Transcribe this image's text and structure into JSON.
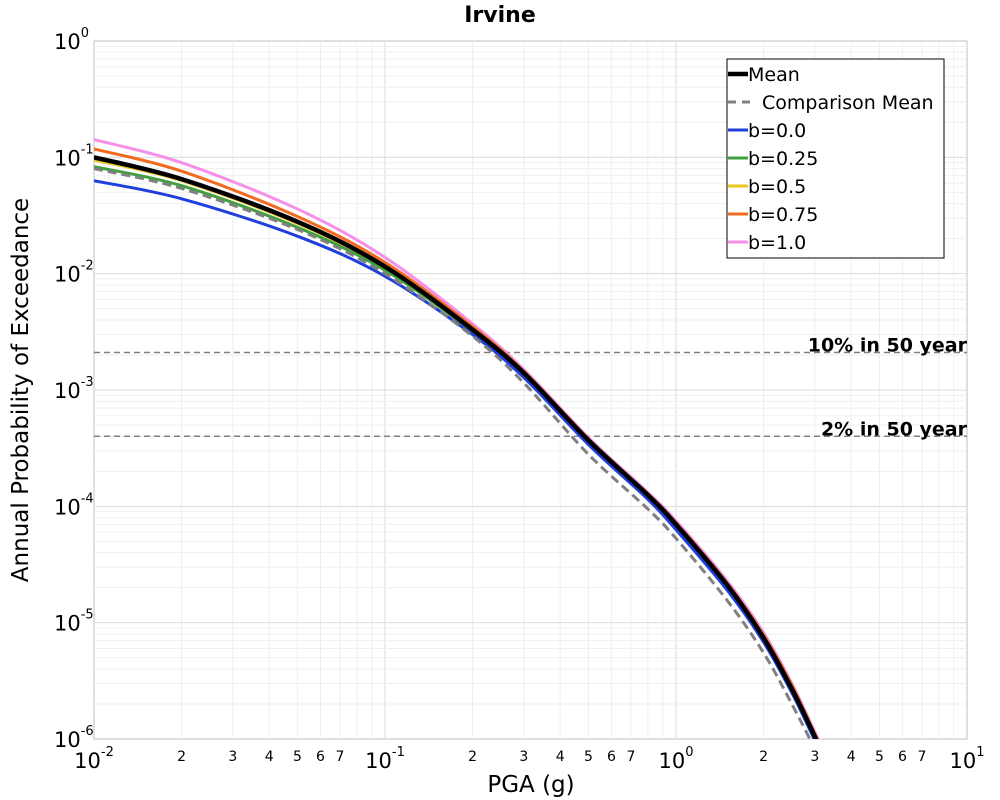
{
  "chart_data": {
    "type": "line",
    "title": "Irvine",
    "xlabel": "PGA (g)",
    "ylabel": "Annual Probability of Exceedance",
    "xscale": "log",
    "yscale": "log",
    "xlim": [
      0.01,
      10
    ],
    "ylim": [
      1e-06,
      1
    ],
    "grid": true,
    "legend_position": "top-right",
    "x_major_ticks": [
      {
        "value": 0.01,
        "base": "10",
        "exp": "-2"
      },
      {
        "value": 0.1,
        "base": "10",
        "exp": "-1"
      },
      {
        "value": 1,
        "base": "10",
        "exp": "0"
      },
      {
        "value": 10,
        "base": "10",
        "exp": "1"
      }
    ],
    "y_major_ticks": [
      {
        "value": 1e-06,
        "base": "10",
        "exp": "-6"
      },
      {
        "value": 1e-05,
        "base": "10",
        "exp": "-5"
      },
      {
        "value": 0.0001,
        "base": "10",
        "exp": "-4"
      },
      {
        "value": 0.001,
        "base": "10",
        "exp": "-3"
      },
      {
        "value": 0.01,
        "base": "10",
        "exp": "-2"
      },
      {
        "value": 0.1,
        "base": "10",
        "exp": "-1"
      },
      {
        "value": 1,
        "base": "10",
        "exp": "0"
      }
    ],
    "x_minor_tick_labels": [
      "2",
      "3",
      "4",
      "5",
      "6",
      "7"
    ],
    "x": [
      0.01,
      0.02,
      0.05,
      0.1,
      0.2,
      0.3,
      0.5,
      0.8,
      1.0,
      1.5,
      2.0,
      2.5,
      3.0,
      3.5
    ],
    "series": [
      {
        "name": "Mean",
        "color": "#000000",
        "dash": "solid",
        "width": 4.5,
        "values": [
          0.1,
          0.065,
          0.028,
          0.0115,
          0.0033,
          0.0014,
          0.00037,
          0.000125,
          7e-05,
          2.1e-05,
          7.4e-06,
          2.7e-06,
          1.05e-06,
          4.5e-07
        ]
      },
      {
        "name": "Comparison Mean",
        "color": "#808080",
        "dash": "dashed",
        "width": 3,
        "values": [
          0.08,
          0.054,
          0.024,
          0.01,
          0.0029,
          0.00115,
          0.00028,
          9.5e-05,
          5.3e-05,
          1.55e-05,
          5.5e-06,
          2e-06,
          8.2e-07,
          3.6e-07
        ]
      },
      {
        "name": "b=0.0",
        "color": "#1f3fdf",
        "dash": "solid",
        "width": 3,
        "values": [
          0.063,
          0.044,
          0.021,
          0.0095,
          0.003,
          0.00128,
          0.00034,
          0.000115,
          6.3e-05,
          1.9e-05,
          6.8e-06,
          2.5e-06,
          9.7e-07,
          4.2e-07
        ]
      },
      {
        "name": "b=0.25",
        "color": "#3fa03f",
        "dash": "solid",
        "width": 3,
        "values": [
          0.083,
          0.057,
          0.025,
          0.0107,
          0.0032,
          0.00135,
          0.00036,
          0.00012,
          6.7e-05,
          2e-05,
          7.2e-06,
          2.6e-06,
          1e-06,
          4.4e-07
        ]
      },
      {
        "name": "b=0.5",
        "color": "#e8c81f",
        "dash": "solid",
        "width": 3,
        "values": [
          0.095,
          0.063,
          0.027,
          0.0113,
          0.0033,
          0.0014,
          0.00037,
          0.000124,
          6.9e-05,
          2.08e-05,
          7.4e-06,
          2.7e-06,
          1.04e-06,
          4.5e-07
        ]
      },
      {
        "name": "b=0.75",
        "color": "#f06a1f",
        "dash": "solid",
        "width": 3,
        "values": [
          0.118,
          0.076,
          0.031,
          0.0125,
          0.0035,
          0.00145,
          0.00038,
          0.000128,
          7.2e-05,
          2.18e-05,
          7.8e-06,
          2.9e-06,
          1.1e-06,
          4.8e-07
        ]
      },
      {
        "name": "b=1.0",
        "color": "#f58fe8",
        "dash": "solid",
        "width": 3,
        "values": [
          0.142,
          0.09,
          0.036,
          0.0138,
          0.0037,
          0.0015,
          0.00039,
          0.000132,
          7.5e-05,
          2.28e-05,
          8.2e-06,
          3e-06,
          1.15e-06,
          5e-07
        ]
      }
    ],
    "reference_lines": [
      {
        "label": "10% in 50 year",
        "y": 0.0021,
        "color": "#808080",
        "dash": "dashed"
      },
      {
        "label": "2% in 50 year",
        "y": 0.0004,
        "color": "#808080",
        "dash": "dashed"
      }
    ]
  }
}
